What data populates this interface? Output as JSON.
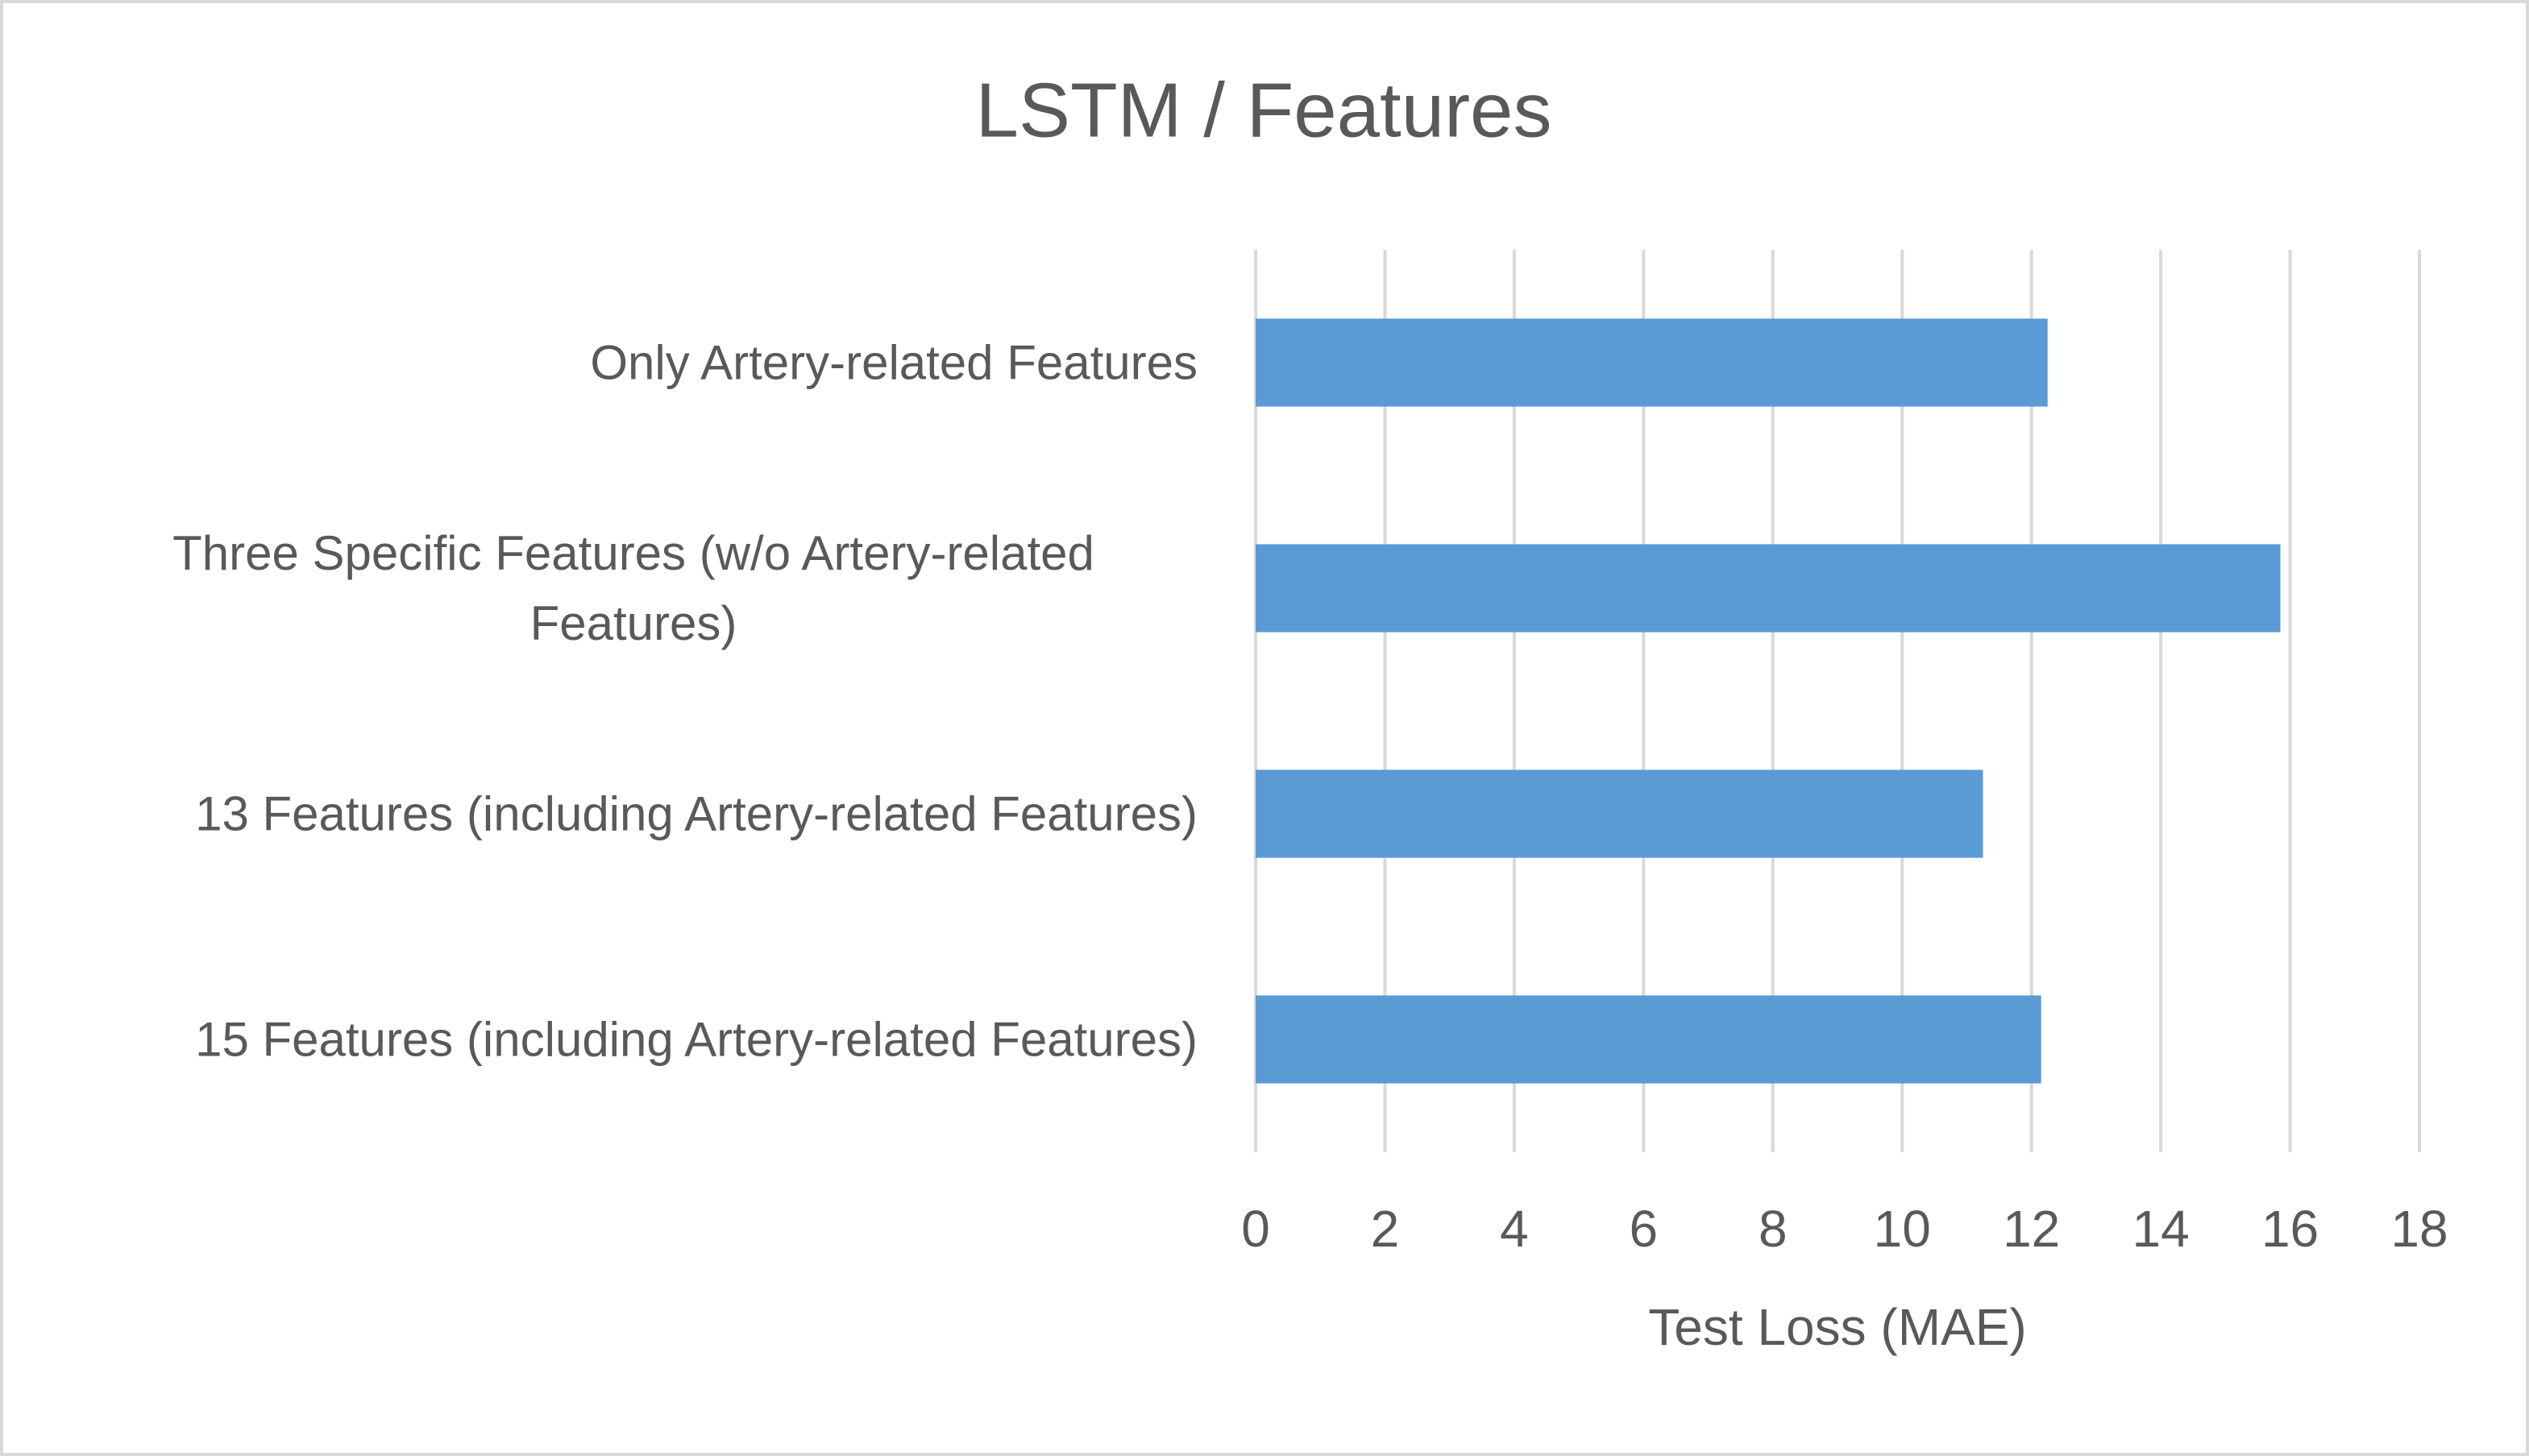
{
  "chart_data": {
    "type": "bar",
    "orientation": "horizontal",
    "title": "LSTM / Features",
    "x_label": "Test Loss (MAE)",
    "categories": [
      "Only Artery-related Features",
      "Three Specific Features (w/o Artery-related Features)",
      "13 Features (including Artery-related Features)",
      "15 Features (including Artery-related Features)"
    ],
    "values": [
      12.25,
      15.85,
      11.25,
      12.15
    ],
    "color": "#5b9bd5",
    "xlim": [
      0,
      18
    ],
    "xticks": [
      0,
      2,
      4,
      6,
      8,
      10,
      12,
      14,
      16,
      18
    ],
    "grid": true
  }
}
